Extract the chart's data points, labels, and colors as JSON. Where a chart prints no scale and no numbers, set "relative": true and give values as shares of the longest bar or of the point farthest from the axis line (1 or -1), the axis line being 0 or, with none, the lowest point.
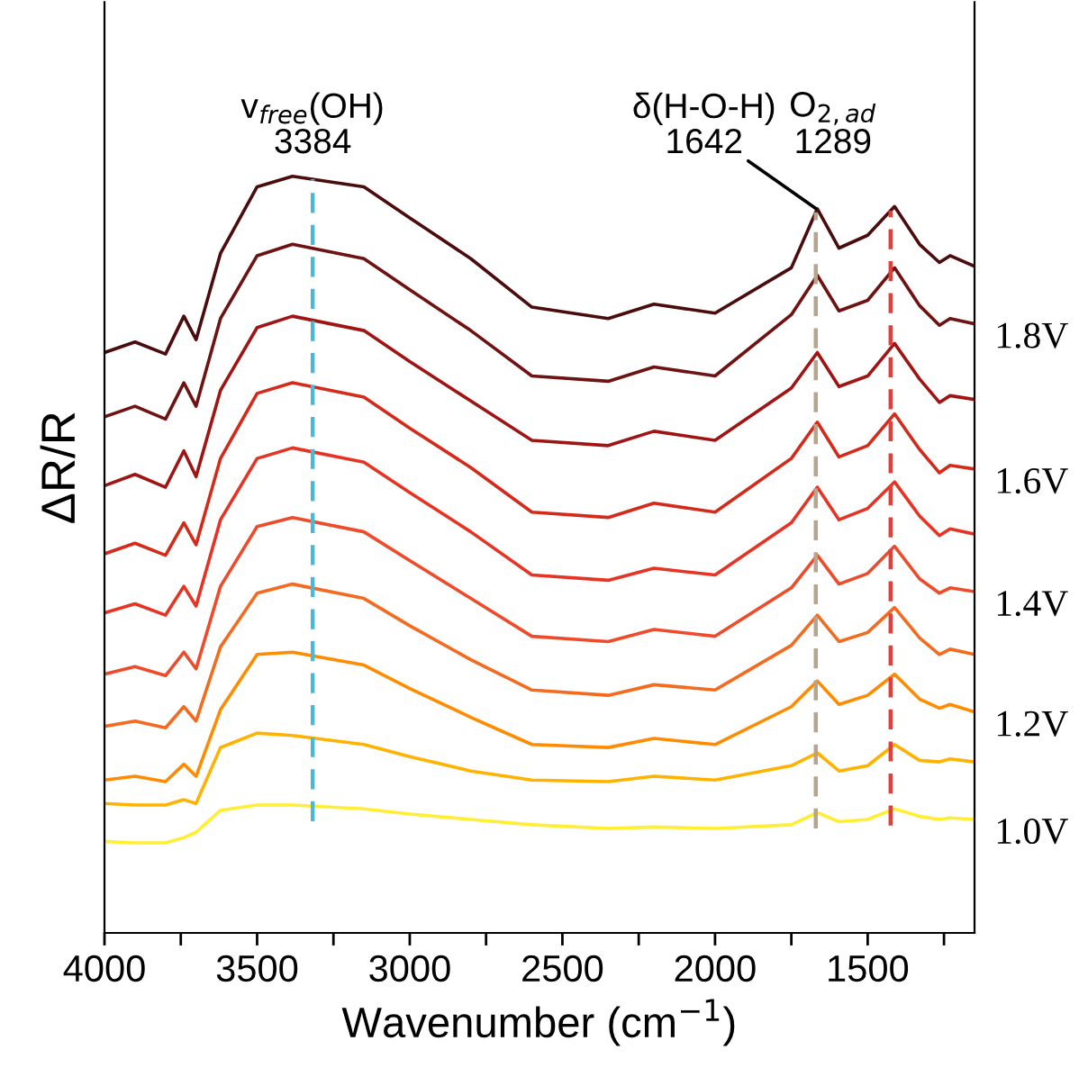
{
  "chart_data": {
    "type": "line",
    "relative": true,
    "xlabel": "Wavenumber (cm$^{−1}$)",
    "ylabel": "ΔR/R",
    "x": [
      4000,
      3900,
      3800,
      3740,
      3700,
      3620,
      3500,
      3384,
      3150,
      3000,
      2800,
      2600,
      2350,
      2200,
      2000,
      1750,
      1665,
      1594,
      1500,
      1412,
      1330,
      1265,
      1230,
      1150
    ],
    "xlim": [
      4000,
      1150
    ],
    "xticks": [
      4000,
      {
        "value": 3750,
        "label": null
      },
      3500,
      {
        "value": 3250,
        "label": null
      },
      3000,
      {
        "value": 2750,
        "label": null
      },
      2500,
      {
        "value": 2250,
        "label": null
      },
      2000,
      {
        "value": 1750,
        "label": null
      },
      1500,
      {
        "value": 1250,
        "label": null
      }
    ],
    "grid": false,
    "marker": "none",
    "line_style": "solid",
    "series": [
      {
        "name": "1.0V",
        "color": "#ffee33",
        "values": [
          0.121,
          0.119,
          0.119,
          0.126,
          0.133,
          0.162,
          0.169,
          0.169,
          0.164,
          0.157,
          0.15,
          0.143,
          0.138,
          0.14,
          0.138,
          0.143,
          0.159,
          0.147,
          0.15,
          0.164,
          0.154,
          0.15,
          0.152,
          0.15
        ]
      },
      {
        "color": "#ffb300",
        "values": [
          0.171,
          0.169,
          0.169,
          0.176,
          0.171,
          0.245,
          0.264,
          0.261,
          0.249,
          0.233,
          0.214,
          0.202,
          0.2,
          0.207,
          0.202,
          0.221,
          0.238,
          0.214,
          0.221,
          0.249,
          0.228,
          0.226,
          0.23,
          0.226
        ]
      },
      {
        "name": "1.2V",
        "color": "#ff8c00",
        "values": [
          0.202,
          0.207,
          0.2,
          0.223,
          0.207,
          0.295,
          0.368,
          0.371,
          0.354,
          0.323,
          0.285,
          0.249,
          0.245,
          0.257,
          0.249,
          0.299,
          0.333,
          0.302,
          0.314,
          0.342,
          0.309,
          0.297,
          0.302,
          0.292
        ]
      },
      {
        "color": "#f46a1f",
        "values": [
          0.273,
          0.28,
          0.271,
          0.299,
          0.28,
          0.378,
          0.449,
          0.461,
          0.442,
          0.406,
          0.361,
          0.321,
          0.314,
          0.328,
          0.321,
          0.38,
          0.42,
          0.385,
          0.397,
          0.43,
          0.39,
          0.368,
          0.375,
          0.368
        ]
      },
      {
        "name": "1.4V",
        "color": "#ee4b2b",
        "values": [
          0.342,
          0.352,
          0.34,
          0.371,
          0.349,
          0.458,
          0.537,
          0.549,
          0.53,
          0.492,
          0.442,
          0.392,
          0.385,
          0.401,
          0.392,
          0.456,
          0.499,
          0.461,
          0.475,
          0.511,
          0.468,
          0.449,
          0.456,
          0.451
        ]
      },
      {
        "color": "#e63323",
        "values": [
          0.423,
          0.435,
          0.42,
          0.458,
          0.432,
          0.546,
          0.627,
          0.641,
          0.622,
          0.582,
          0.53,
          0.473,
          0.466,
          0.482,
          0.473,
          0.542,
          0.589,
          0.546,
          0.561,
          0.596,
          0.551,
          0.525,
          0.534,
          0.527
        ]
      },
      {
        "name": "1.6V",
        "color": "#d42a1a",
        "values": [
          0.501,
          0.515,
          0.499,
          0.542,
          0.513,
          0.627,
          0.713,
          0.727,
          0.708,
          0.667,
          0.615,
          0.556,
          0.549,
          0.568,
          0.556,
          0.627,
          0.675,
          0.629,
          0.644,
          0.686,
          0.639,
          0.608,
          0.618,
          0.613
        ]
      },
      {
        "color": "#a01414",
        "values": [
          0.591,
          0.606,
          0.589,
          0.637,
          0.603,
          0.717,
          0.8,
          0.815,
          0.796,
          0.755,
          0.703,
          0.651,
          0.644,
          0.663,
          0.651,
          0.72,
          0.767,
          0.722,
          0.736,
          0.779,
          0.732,
          0.701,
          0.71,
          0.705
        ]
      },
      {
        "name": "1.8V",
        "color": "#6e1212",
        "values": [
          0.682,
          0.696,
          0.679,
          0.727,
          0.696,
          0.812,
          0.895,
          0.91,
          0.891,
          0.85,
          0.796,
          0.736,
          0.729,
          0.748,
          0.736,
          0.817,
          0.869,
          0.822,
          0.836,
          0.879,
          0.829,
          0.803,
          0.812,
          0.805
        ]
      },
      {
        "color": "#4a0c0c",
        "values": [
          0.767,
          0.781,
          0.765,
          0.815,
          0.784,
          0.898,
          0.986,
          1.0,
          0.986,
          0.945,
          0.891,
          0.827,
          0.812,
          0.831,
          0.819,
          0.879,
          0.957,
          0.905,
          0.922,
          0.96,
          0.91,
          0.886,
          0.895,
          0.881
        ]
      }
    ],
    "ref_lines": [
      {
        "axis": "x",
        "value": 3318,
        "label": "v$_{free}$(OH)\n3384",
        "color": "#4bb8d8",
        "line_style": "dashed"
      },
      {
        "axis": "x",
        "value": 1670,
        "label": "δ(H-O-H)\n1642",
        "color": "#b8a48c",
        "line_style": "dashed"
      },
      {
        "axis": "x",
        "value": 1425,
        "label": "O$_{2,ad}$\n1289",
        "color": "#e0403a",
        "line_style": "dashed"
      }
    ]
  }
}
